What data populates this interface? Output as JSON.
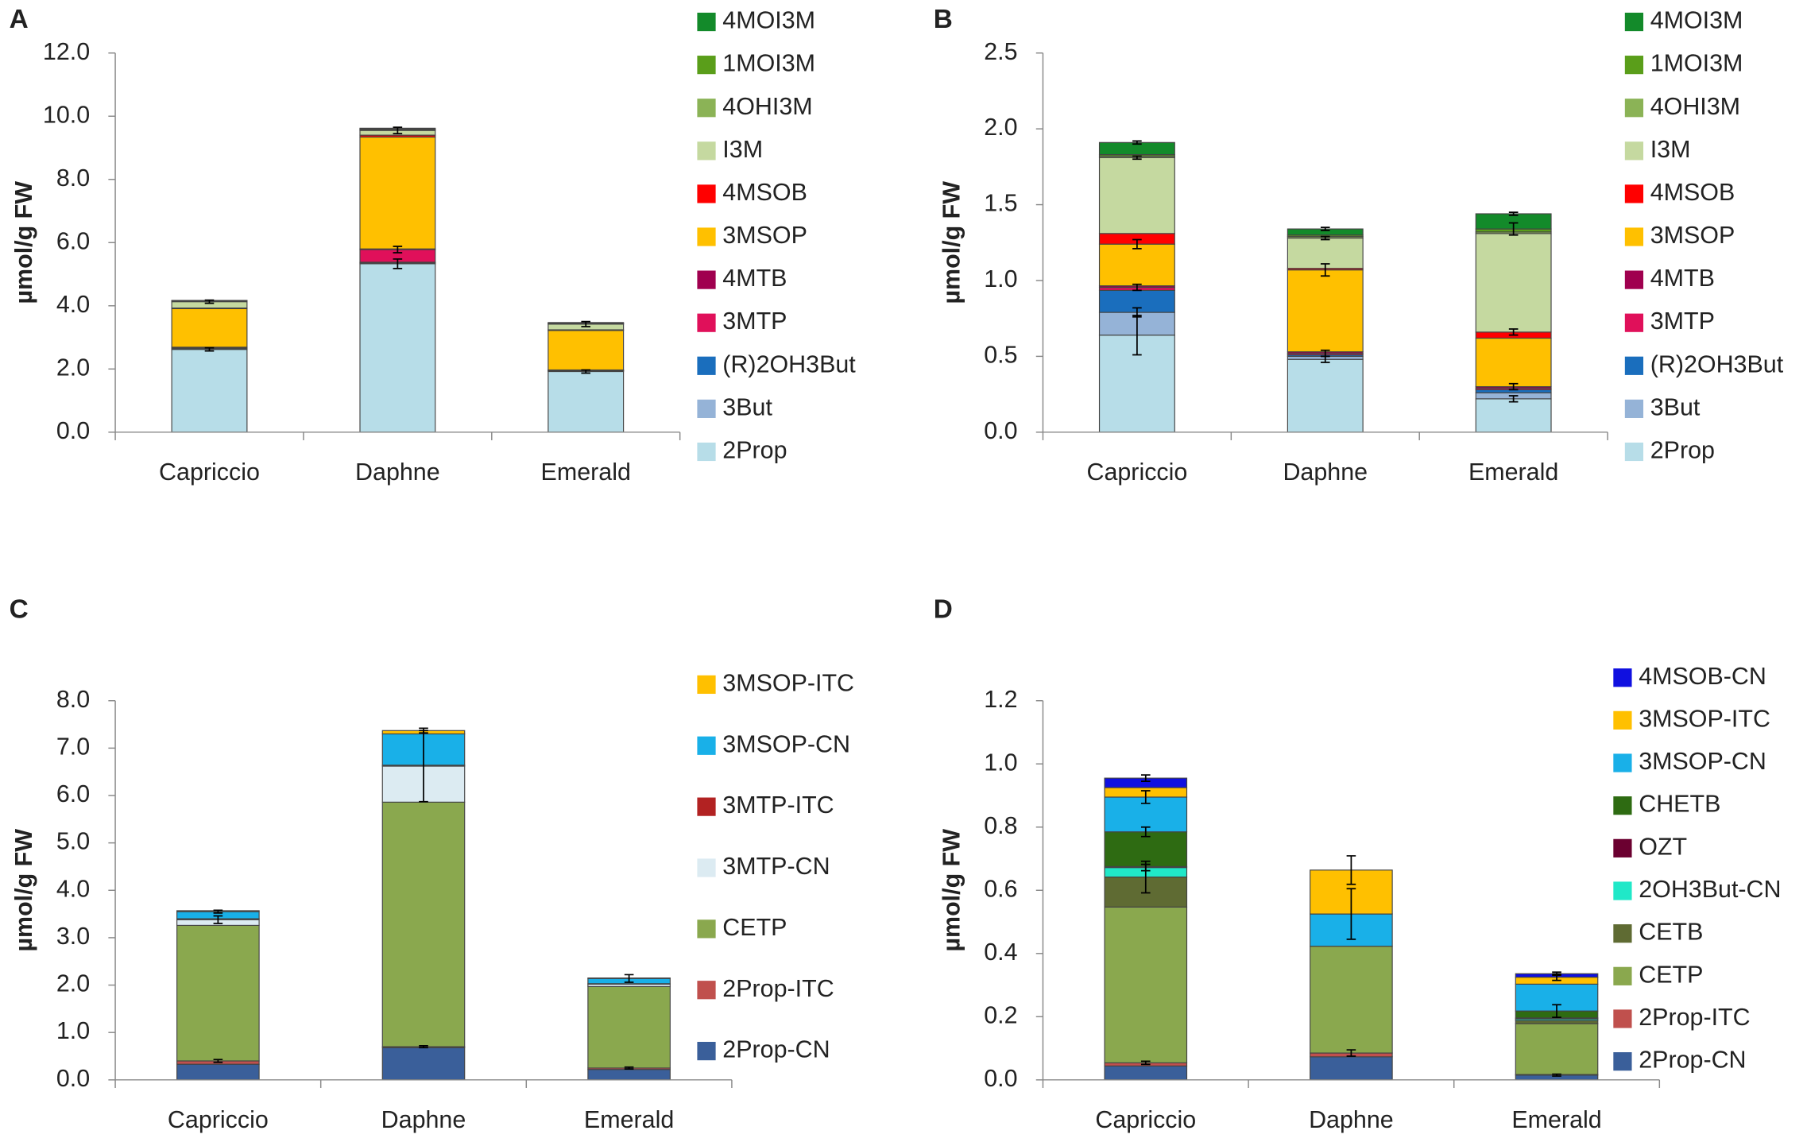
{
  "chart_data": [
    {
      "panel_label": "A",
      "type": "bar",
      "stacked": true,
      "y_label": "µmol/g FW",
      "categories": [
        "Capriccio",
        "Daphne",
        "Emerald"
      ],
      "ylim": [
        0,
        12
      ],
      "yticks": [
        {
          "value": 0,
          "label": "0.0"
        },
        {
          "value": 2,
          "label": "2.0"
        },
        {
          "value": 4,
          "label": "4.0"
        },
        {
          "value": 6,
          "label": "6.0"
        },
        {
          "value": 8,
          "label": "8.0"
        },
        {
          "value": 10,
          "label": "10.0"
        },
        {
          "value": 12,
          "label": "12.0"
        }
      ],
      "series": [
        {
          "name": "2Prop",
          "color": "#b7dde8",
          "values": [
            2.62,
            5.33,
            1.92
          ],
          "errors": [
            0.05,
            0.15,
            0.05
          ]
        },
        {
          "name": "3But",
          "color": "#95b3d7",
          "values": [
            0.02,
            0.03,
            0.02
          ],
          "errors": [
            null,
            null,
            null
          ]
        },
        {
          "name": "(R)2OH3But",
          "color": "#1a6ebd",
          "values": [
            0.01,
            0.02,
            0.01
          ],
          "errors": [
            null,
            null,
            null
          ]
        },
        {
          "name": "3MTP",
          "color": "#e0105a",
          "values": [
            0.03,
            0.4,
            0.01
          ],
          "errors": [
            null,
            0.1,
            null
          ]
        },
        {
          "name": "4MTB",
          "color": "#a0004f",
          "values": [
            0.01,
            0.02,
            0.01
          ],
          "errors": [
            null,
            null,
            null
          ]
        },
        {
          "name": "3MSOP",
          "color": "#ffc000",
          "values": [
            1.22,
            3.54,
            1.25
          ],
          "errors": [
            null,
            null,
            null
          ]
        },
        {
          "name": "4MSOB",
          "color": "#ff0000",
          "values": [
            0.02,
            0.06,
            0.02
          ],
          "errors": [
            null,
            null,
            null
          ]
        },
        {
          "name": "I3M",
          "color": "#c5d9a0",
          "values": [
            0.2,
            0.15,
            0.18
          ],
          "errors": [
            0.05,
            0.1,
            0.08
          ]
        },
        {
          "name": "4OHI3M",
          "color": "#8bb356",
          "values": [
            0.02,
            0.03,
            0.02
          ],
          "errors": [
            null,
            null,
            null
          ]
        },
        {
          "name": "1MOI3M",
          "color": "#5a9e1a",
          "values": [
            0.01,
            0.02,
            0.01
          ],
          "errors": [
            null,
            null,
            null
          ]
        },
        {
          "name": "4MOI3M",
          "color": "#138a2a",
          "values": [
            0.01,
            0.02,
            0.02
          ],
          "errors": [
            null,
            null,
            null
          ]
        }
      ]
    },
    {
      "panel_label": "B",
      "type": "bar",
      "stacked": true,
      "y_label": "µmol/g FW",
      "categories": [
        "Capriccio",
        "Daphne",
        "Emerald"
      ],
      "ylim": [
        0,
        2.5
      ],
      "yticks": [
        {
          "value": 0,
          "label": "0.0"
        },
        0.5,
        {
          "value": 1,
          "label": "1.0"
        },
        1.5,
        {
          "value": 2,
          "label": "2.0"
        },
        2.5
      ],
      "series": [
        {
          "name": "2Prop",
          "color": "#b7dde8",
          "values": [
            0.64,
            0.48,
            0.22
          ],
          "errors": [
            0.13,
            0.02,
            0.02
          ]
        },
        {
          "name": "3But",
          "color": "#95b3d7",
          "values": [
            0.15,
            0.02,
            0.04
          ],
          "errors": [
            0.03,
            null,
            null
          ]
        },
        {
          "name": "(R)2OH3But",
          "color": "#1a6ebd",
          "values": [
            0.145,
            0.01,
            0.02
          ],
          "errors": [
            null,
            null,
            null
          ]
        },
        {
          "name": "3MTP",
          "color": "#e0105a",
          "values": [
            0.02,
            0.01,
            0.01
          ],
          "errors": [
            0.02,
            0.02,
            null
          ]
        },
        {
          "name": "4MTB",
          "color": "#a0004f",
          "values": [
            0.01,
            0.01,
            0.01
          ],
          "errors": [
            null,
            null,
            0.02
          ]
        },
        {
          "name": "3MSOP",
          "color": "#ffc000",
          "values": [
            0.275,
            0.54,
            0.32
          ],
          "errors": [
            0.03,
            0.04,
            null
          ]
        },
        {
          "name": "4MSOB",
          "color": "#ff0000",
          "values": [
            0.07,
            0.01,
            0.04
          ],
          "errors": [
            null,
            null,
            0.02
          ]
        },
        {
          "name": "I3M",
          "color": "#c5d9a0",
          "values": [
            0.5,
            0.2,
            0.65
          ],
          "errors": [
            0.01,
            0.01,
            null
          ]
        },
        {
          "name": "4OHI3M",
          "color": "#8bb356",
          "values": [
            0.01,
            0.01,
            0.01
          ],
          "errors": [
            null,
            null,
            null
          ]
        },
        {
          "name": "1MOI3M",
          "color": "#5a9e1a",
          "values": [
            0.01,
            0.01,
            0.02
          ],
          "errors": [
            null,
            null,
            0.04
          ]
        },
        {
          "name": "4MOI3M",
          "color": "#138a2a",
          "values": [
            0.08,
            0.04,
            0.1
          ],
          "errors": [
            0.01,
            0.01,
            0.01
          ]
        }
      ]
    },
    {
      "panel_label": "C",
      "type": "bar",
      "stacked": true,
      "y_label": "µmol/g FW",
      "categories": [
        "Capriccio",
        "Daphne",
        "Emerald"
      ],
      "ylim": [
        0,
        8
      ],
      "yticks": [
        {
          "value": 0,
          "label": "0.0"
        },
        {
          "value": 1,
          "label": "1.0"
        },
        {
          "value": 2,
          "label": "2.0"
        },
        {
          "value": 3,
          "label": "3.0"
        },
        {
          "value": 4,
          "label": "4.0"
        },
        {
          "value": 5,
          "label": "5.0"
        },
        {
          "value": 6,
          "label": "6.0"
        },
        {
          "value": 7,
          "label": "7.0"
        },
        {
          "value": 8,
          "label": "8.0"
        }
      ],
      "series": [
        {
          "name": "2Prop-CN",
          "color": "#3a5f9a",
          "values": [
            0.33,
            0.68,
            0.22
          ],
          "errors": [
            null,
            null,
            null
          ]
        },
        {
          "name": "2Prop-ITC",
          "color": "#c0504d",
          "values": [
            0.07,
            0.02,
            0.03
          ],
          "errors": [
            0.03,
            0.02,
            0.02
          ]
        },
        {
          "name": "CETP",
          "color": "#8aa84e",
          "values": [
            2.86,
            5.16,
            1.72
          ],
          "errors": [
            null,
            null,
            null
          ]
        },
        {
          "name": "3MTP-CN",
          "color": "#dcebf2",
          "values": [
            0.12,
            0.76,
            0.05
          ],
          "errors": [
            0.08,
            0.75,
            null
          ]
        },
        {
          "name": "3MTP-ITC",
          "color": "#b22222",
          "values": [
            0.02,
            0.02,
            0.01
          ],
          "errors": [
            null,
            null,
            null
          ]
        },
        {
          "name": "3MSOP-CN",
          "color": "#19b0e8",
          "values": [
            0.15,
            0.66,
            0.11
          ],
          "errors": [
            0.03,
            null,
            0.08
          ]
        },
        {
          "name": "3MSOP-ITC",
          "color": "#ffc000",
          "values": [
            0.02,
            0.07,
            0.01
          ],
          "errors": [
            null,
            0.05,
            null
          ]
        }
      ]
    },
    {
      "panel_label": "D",
      "type": "bar",
      "stacked": true,
      "y_label": "µmol/g FW",
      "categories": [
        "Capriccio",
        "Daphne",
        "Emerald"
      ],
      "ylim": [
        0,
        1.2
      ],
      "yticks": [
        {
          "value": 0,
          "label": "0.0"
        },
        0.2,
        0.4,
        0.6,
        0.8,
        {
          "value": 1,
          "label": "1.0"
        },
        1.2
      ],
      "series": [
        {
          "name": "2Prop-CN",
          "color": "#3a5f9a",
          "values": [
            0.044,
            0.073,
            0.015
          ],
          "errors": [
            null,
            null,
            0.003
          ]
        },
        {
          "name": "2Prop-ITC",
          "color": "#c0504d",
          "values": [
            0.01,
            0.012,
            0.002
          ],
          "errors": [
            0.005,
            0.01,
            null
          ]
        },
        {
          "name": "CETP",
          "color": "#8aa84e",
          "values": [
            0.493,
            0.338,
            0.161
          ],
          "errors": [
            null,
            null,
            null
          ]
        },
        {
          "name": "CETB",
          "color": "#5f6b33",
          "values": [
            0.095,
            0,
            0.01
          ],
          "errors": [
            0.05,
            null,
            null
          ]
        },
        {
          "name": "2OH3But-CN",
          "color": "#20e8c8",
          "values": [
            0.03,
            0,
            0.005
          ],
          "errors": [
            0.01,
            null,
            null
          ]
        },
        {
          "name": "OZT",
          "color": "#6b0030",
          "values": [
            0.003,
            0,
            0.003
          ],
          "errors": [
            null,
            null,
            null
          ]
        },
        {
          "name": "CHETB",
          "color": "#2e6b12",
          "values": [
            0.11,
            0,
            0.022
          ],
          "errors": [
            0.015,
            null,
            0.02
          ]
        },
        {
          "name": "3MSOP-CN",
          "color": "#19b0e8",
          "values": [
            0.11,
            0.102,
            0.085
          ],
          "errors": [
            0.02,
            0.08,
            null
          ]
        },
        {
          "name": "3MSOP-ITC",
          "color": "#ffc000",
          "values": [
            0.03,
            0.139,
            0.022
          ],
          "errors": [
            null,
            0.045,
            0.01
          ]
        },
        {
          "name": "4MSOB-CN",
          "color": "#1010e0",
          "values": [
            0.03,
            0,
            0.011
          ],
          "errors": [
            0.01,
            null,
            0.005
          ]
        }
      ]
    }
  ]
}
